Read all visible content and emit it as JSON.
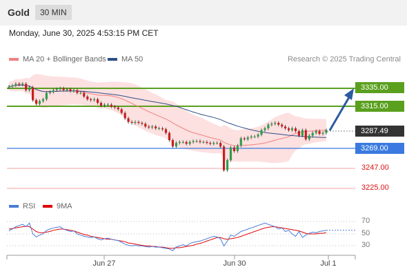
{
  "header": {
    "symbol": "Gold",
    "timeframe": "30 MIN"
  },
  "datetime": "Monday, June 30, 2025 4:53:15 PM CET",
  "legend": {
    "bollinger": {
      "label": "MA 20 + Bollinger Bands",
      "color": "#f08080"
    },
    "ma50": {
      "label": "MA 50",
      "color": "#2c4e86"
    },
    "rsi": {
      "label": "RSI",
      "color": "#4a7bd8"
    },
    "nine_ma": {
      "label": "9MA",
      "color": "#e00000"
    }
  },
  "copyright": "Research © 2025 Trading Central",
  "levels": {
    "r2": {
      "label": "3335.00",
      "value": 3335.0,
      "color": "#5aa01e"
    },
    "r1": {
      "label": "3315.00",
      "value": 3315.0,
      "color": "#5aa01e"
    },
    "last": {
      "label": "3287.49",
      "value": 3287.49,
      "color": "#333333"
    },
    "pivot": {
      "label": "3269.00",
      "value": 3269.0,
      "color": "#3a7ae0"
    },
    "s1": {
      "label": "3247.00",
      "value": 3247.0,
      "color": "#e05050"
    },
    "s2": {
      "label": "3225.00",
      "value": 3225.0,
      "color": "#e05050"
    }
  },
  "oscillator": {
    "levels": [
      "70",
      "50",
      "30"
    ]
  },
  "x_axis": {
    "labels": [
      "Jun 27",
      "Jun 30",
      "Jul 1"
    ]
  },
  "chart_data": {
    "type": "candlestick",
    "price_range": [
      3225,
      3335
    ],
    "candles_close": [
      3337,
      3338,
      3340,
      3339,
      3340,
      3333,
      3336,
      3322,
      3318,
      3321,
      3323,
      3330,
      3331,
      3333,
      3334,
      3335,
      3333,
      3334,
      3332,
      3333,
      3330,
      3330,
      3326,
      3323,
      3322,
      3323,
      3319,
      3316,
      3317,
      3317,
      3315,
      3314,
      3312,
      3308,
      3302,
      3298,
      3297,
      3298,
      3297,
      3296,
      3293,
      3292,
      3293,
      3291,
      3291,
      3290,
      3286,
      3278,
      3271,
      3275,
      3276,
      3276,
      3274,
      3276,
      3277,
      3277,
      3276,
      3276,
      3275,
      3274,
      3275,
      3275,
      3271,
      3245,
      3256,
      3270,
      3266,
      3272,
      3280,
      3279,
      3281,
      3282,
      3282,
      3284,
      3289,
      3291,
      3295,
      3296,
      3297,
      3295,
      3293,
      3291,
      3289,
      3291,
      3288,
      3283,
      3289,
      3279,
      3283,
      3286,
      3288,
      3285,
      3286,
      3289
    ],
    "rsi": [
      55,
      58,
      62,
      64,
      66,
      62,
      68,
      50,
      45,
      48,
      50,
      56,
      58,
      60,
      61,
      62,
      58,
      56,
      54,
      55,
      50,
      48,
      46,
      45,
      44,
      45,
      42,
      40,
      42,
      43,
      41,
      40,
      39,
      36,
      33,
      31,
      30,
      31,
      30,
      30,
      29,
      28,
      29,
      28,
      28,
      27,
      26,
      25,
      22,
      28,
      30,
      32,
      30,
      34,
      36,
      37,
      38,
      40,
      42,
      44,
      46,
      45,
      42,
      30,
      38,
      48,
      46,
      50,
      54,
      56,
      58,
      60,
      62,
      64,
      66,
      68,
      66,
      64,
      62,
      58,
      60,
      54,
      56,
      50,
      46,
      54,
      44,
      48,
      51,
      53,
      52,
      54,
      55,
      56
    ],
    "rsi_9ma": [
      58,
      59,
      60,
      61,
      62,
      63,
      62,
      58,
      54,
      52,
      52,
      53,
      54,
      56,
      57,
      58,
      58,
      57,
      56,
      55,
      53,
      51,
      49,
      48,
      46,
      45,
      44,
      43,
      42,
      41,
      41,
      40,
      39,
      38,
      37,
      35,
      34,
      33,
      32,
      31,
      30,
      30,
      29,
      29,
      28,
      28,
      27,
      26,
      26,
      27,
      27,
      28,
      29,
      30,
      31,
      33,
      34,
      36,
      38,
      40,
      42,
      44,
      44,
      42,
      41,
      42,
      43,
      44,
      46,
      48,
      50,
      52,
      54,
      56,
      58,
      60,
      61,
      62,
      62,
      61,
      60,
      59,
      58,
      57,
      56,
      55,
      53,
      51,
      50,
      50,
      50,
      51,
      51,
      52
    ],
    "rsi_levels": [
      70,
      50,
      30
    ],
    "x_labels": [
      "Jun 27",
      "Jun 30",
      "Jul 1"
    ]
  }
}
